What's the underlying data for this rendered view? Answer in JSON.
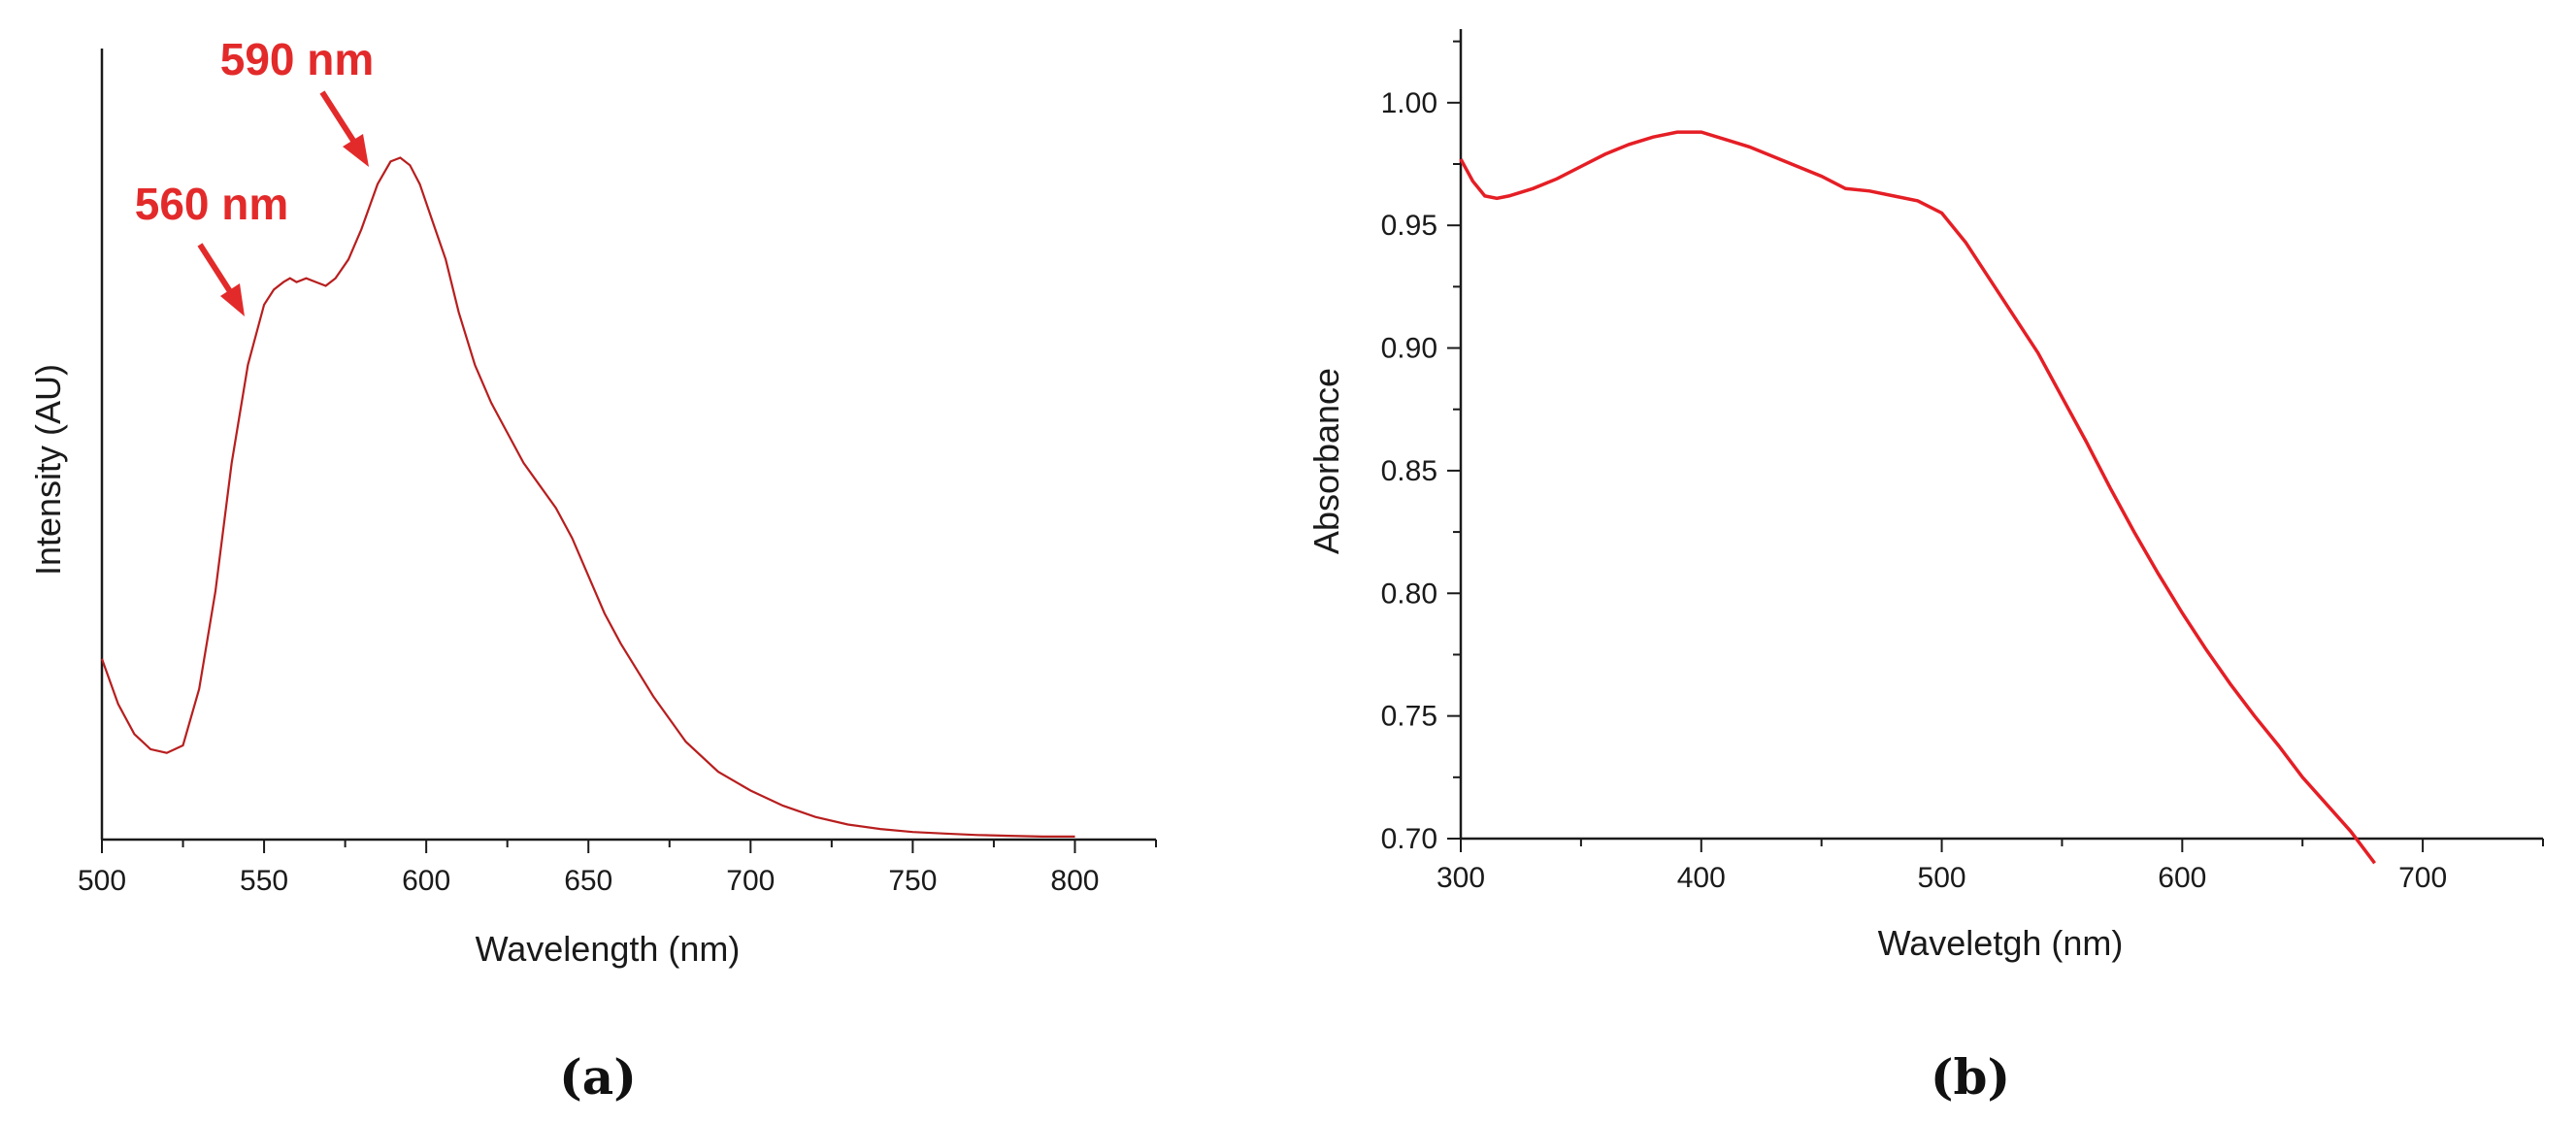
{
  "colors": {
    "series_a": "#b81e1e",
    "series_b": "#e51e25",
    "annotation": "#e32a2a",
    "axis": "#1a1a1a"
  },
  "chart_data": [
    {
      "type": "line",
      "panel_label": "(a)",
      "xlabel": "Wavelength (nm)",
      "ylabel": "Intensity (AU)",
      "xlim": [
        500,
        825
      ],
      "ylim": [
        0,
        1.05
      ],
      "x_ticks": [
        500,
        550,
        600,
        650,
        700,
        750,
        800
      ],
      "y_ticks_visible": false,
      "grid": false,
      "annotations": [
        {
          "text": "560 nm",
          "x": 560
        },
        {
          "text": "590 nm",
          "x": 590
        }
      ],
      "series": [
        {
          "x": [
            500,
            505,
            510,
            515,
            520,
            525,
            530,
            535,
            540,
            545,
            550,
            553,
            556,
            558,
            560,
            563,
            566,
            569,
            572,
            576,
            580,
            585,
            589,
            592,
            595,
            598,
            602,
            606,
            610,
            615,
            620,
            625,
            630,
            635,
            640,
            645,
            650,
            655,
            660,
            670,
            680,
            690,
            700,
            710,
            720,
            730,
            740,
            750,
            760,
            770,
            780,
            790,
            800
          ],
          "values": [
            0.24,
            0.18,
            0.14,
            0.12,
            0.115,
            0.125,
            0.2,
            0.33,
            0.5,
            0.63,
            0.71,
            0.73,
            0.74,
            0.745,
            0.74,
            0.745,
            0.74,
            0.735,
            0.745,
            0.77,
            0.81,
            0.87,
            0.9,
            0.905,
            0.895,
            0.87,
            0.82,
            0.77,
            0.7,
            0.63,
            0.58,
            0.54,
            0.5,
            0.47,
            0.44,
            0.4,
            0.35,
            0.3,
            0.26,
            0.19,
            0.13,
            0.09,
            0.065,
            0.045,
            0.03,
            0.02,
            0.014,
            0.01,
            0.008,
            0.006,
            0.005,
            0.004,
            0.004
          ]
        }
      ]
    },
    {
      "type": "line",
      "panel_label": "(b)",
      "xlabel": "Waveletgh (nm)",
      "ylabel": "Absorbance",
      "xlim": [
        300,
        750
      ],
      "ylim": [
        0.7,
        1.03
      ],
      "x_ticks": [
        300,
        400,
        500,
        600,
        700
      ],
      "y_ticks": [
        0.7,
        0.75,
        0.8,
        0.85,
        0.9,
        0.95,
        1.0
      ],
      "y_tick_labels": [
        "0.70",
        "0.75",
        "0.80",
        "0.85",
        "0.90",
        "0.95",
        "1.00"
      ],
      "grid": false,
      "series": [
        {
          "x": [
            300,
            305,
            310,
            315,
            320,
            330,
            340,
            350,
            360,
            370,
            380,
            390,
            400,
            410,
            420,
            430,
            440,
            450,
            460,
            470,
            480,
            490,
            500,
            510,
            520,
            530,
            540,
            550,
            560,
            570,
            580,
            590,
            600,
            610,
            620,
            630,
            640,
            650,
            660,
            670,
            680
          ],
          "values": [
            0.977,
            0.968,
            0.962,
            0.961,
            0.962,
            0.965,
            0.969,
            0.974,
            0.979,
            0.983,
            0.986,
            0.988,
            0.988,
            0.985,
            0.982,
            0.978,
            0.974,
            0.97,
            0.965,
            0.964,
            0.962,
            0.96,
            0.955,
            0.943,
            0.928,
            0.913,
            0.898,
            0.88,
            0.862,
            0.843,
            0.825,
            0.808,
            0.792,
            0.777,
            0.763,
            0.75,
            0.738,
            0.725,
            0.714,
            0.703,
            0.69
          ]
        }
      ]
    }
  ]
}
